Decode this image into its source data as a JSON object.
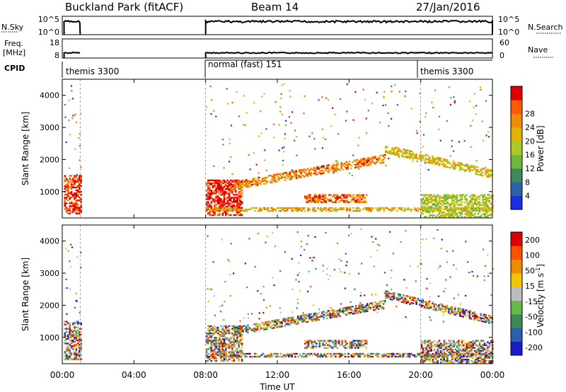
{
  "header": {
    "title": "Buckland Park (fitACF)",
    "beam": "Beam 14",
    "date": "27/Jan/2016"
  },
  "colors": {
    "power_scale": [
      "#1b2ee6",
      "#2f5fa8",
      "#3f8a5a",
      "#6fb73a",
      "#a9cc25",
      "#e2b200",
      "#f08a00",
      "#ff5a00",
      "#e00000"
    ],
    "velocity_scale": [
      "#1a1acc",
      "#2a5fb0",
      "#3a8a55",
      "#66b84a",
      "#bdbdbd",
      "#f0c400",
      "#f08a00",
      "#ff5000",
      "#dd0000"
    ]
  },
  "chart_data": [
    {
      "name": "status-panels",
      "type": "line",
      "time_axis": {
        "range": [
          "00:00",
          "24:00"
        ]
      },
      "nsky": {
        "label": "N.Sky",
        "ticks": [
          "10^5",
          "10^0"
        ]
      },
      "nsearch": {
        "label": "N.Search",
        "ticks": [
          "10^5",
          "10^0"
        ]
      },
      "freq": {
        "label_line1": "Freq.",
        "label_line2": "[MHz]",
        "ticks": [
          "18",
          "8"
        ]
      },
      "nave": {
        "label": "Nave",
        "ticks": [
          "60",
          "0"
        ]
      },
      "cpid": {
        "label": "CPID",
        "segments": [
          {
            "start": "00:00",
            "end": "01:00",
            "text": "themis 3300"
          },
          {
            "start": "08:00",
            "end": "20:00",
            "text": "normal (fast) 151"
          },
          {
            "start": "20:00",
            "end": "24:00",
            "text": "themis 3300"
          }
        ]
      },
      "active_periods": [
        [
          "00:05",
          "01:00"
        ],
        [
          "08:00",
          "24:00"
        ]
      ]
    },
    {
      "name": "power-panel",
      "type": "heatmap",
      "ylabel": "Slant Range [km]",
      "yticks": [
        1000,
        2000,
        3000,
        4000
      ],
      "ylim": [
        180,
        4500
      ],
      "colorbar": {
        "label": "Power [dB]",
        "ticks": [
          "4",
          "8",
          "12",
          "16",
          "20",
          "24",
          "28"
        ],
        "range": [
          0,
          32
        ]
      },
      "echo_bands": [
        {
          "t0": 0.1,
          "t1": 1.0,
          "r0": 300,
          "r1": 1500,
          "level": 0.85
        },
        {
          "t0": 8.0,
          "t1": 10.0,
          "r0": 250,
          "r1": 1350,
          "level": 0.9
        },
        {
          "t0": 8.0,
          "t1": 24.0,
          "r0": 380,
          "r1": 480,
          "level": 0.6
        },
        {
          "t0": 9.5,
          "t1": 18.0,
          "r0": 1100,
          "r1": 2200,
          "level": 0.7
        },
        {
          "t0": 13.5,
          "t1": 17.0,
          "r0": 650,
          "r1": 900,
          "level": 0.75
        },
        {
          "t0": 18.0,
          "t1": 24.0,
          "r0": 1300,
          "r1": 2200,
          "level": 0.55
        },
        {
          "t0": 20.0,
          "t1": 24.0,
          "r0": 200,
          "r1": 900,
          "level": 0.45
        }
      ]
    },
    {
      "name": "velocity-panel",
      "type": "heatmap",
      "ylabel": "Slant Range [km]",
      "yticks": [
        1000,
        2000,
        3000,
        4000
      ],
      "ylim": [
        180,
        4500
      ],
      "colorbar": {
        "label": "Velocity [m s",
        "label_sup": "-1",
        "label_end": "]",
        "ticks": [
          "200",
          "100",
          "50",
          "15",
          "-15",
          "-50",
          "-100",
          "-200"
        ],
        "range": [
          -250,
          250
        ]
      },
      "xlabel": "Time UT",
      "xticks": [
        "00:00",
        "04:00",
        "08:00",
        "12:00",
        "16:00",
        "20:00",
        "00:00"
      ]
    }
  ]
}
